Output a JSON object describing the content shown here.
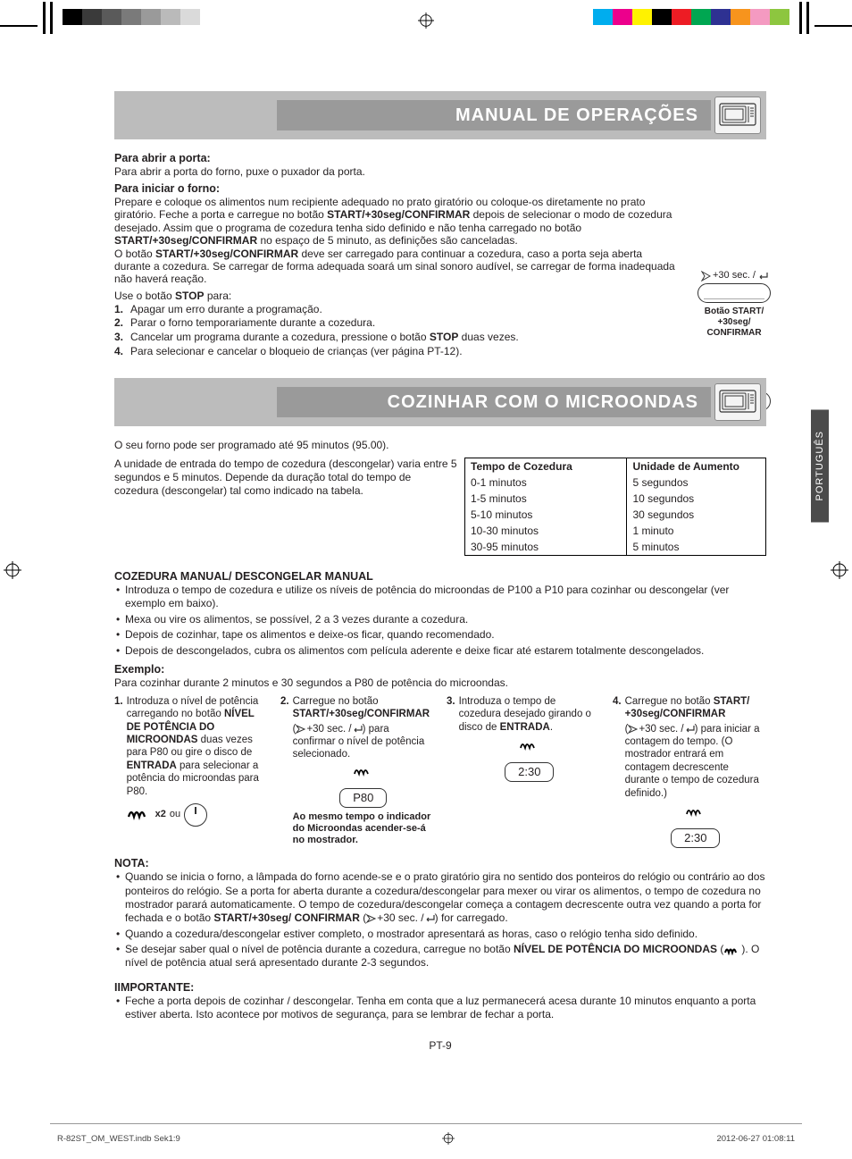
{
  "swatches_left": [
    "#000000",
    "#3a3a3a",
    "#5a5a5a",
    "#7a7a7a",
    "#9a9a9a",
    "#bababa",
    "#dadada",
    "#ffffff"
  ],
  "swatches_right": [
    "#00adee",
    "#ec008c",
    "#fff200",
    "#000000",
    "#ed1c24",
    "#00a651",
    "#2e3192",
    "#f7941d",
    "#f49ac1",
    "#8dc63f"
  ],
  "banner1": "MANUAL DE OPERAÇÕES",
  "open_door_h": "Para abrir a porta:",
  "open_door_p": "Para abrir a porta do forno, puxe o puxador da porta.",
  "start_oven_h": "Para iniciar o forno:",
  "start_oven_p1": "Prepare e coloque os alimentos num recipiente adequado no prato giratório ou coloque-os diretamente no prato giratório. Feche a porta e carregue no botão ",
  "start_oven_b1": "START/+30seg/CONFIRMAR",
  "start_oven_p1b": " depois de selecionar o modo de cozedura desejado. Assim que o programa de cozedura tenha sido definido e não tenha carregado no botão ",
  "start_oven_b2": "START/+30seg/CONFIRMAR",
  "start_oven_p1c": " no espaço de 5 minuto, as definições são canceladas.",
  "start_oven_p2a": "O botão ",
  "start_oven_b3": "START/+30seg/CONFIRMAR",
  "start_oven_p2b": " deve ser carregado para continuar a cozedura, caso a porta seja aberta durante a cozedura. Se carregar de forma adequada soará um sinal sonoro audível, se carregar de forma inadequada não haverá reação.",
  "use_stop_pre": "Use o botão ",
  "use_stop_b": "STOP",
  "use_stop_post": " para:",
  "stop_items": [
    "Apagar um erro durante a programação.",
    "Parar o forno temporariamente durante a cozedura.",
    "Cancelar um programa durante a cozedura, pressione o botão STOP duas vezes.",
    "Para selecionar e cancelar o bloqueio de crianças (ver página PT-12)."
  ],
  "stop_item3_pre": "Cancelar um programa durante a cozedura, pressione o botão ",
  "stop_item3_b": "STOP",
  "stop_item3_post": " duas vezes.",
  "rail_start_sym": "+30 sec. /",
  "rail_start_label": "Botão START/ +30seg/ CONFIRMAR",
  "rail_stop_word": "STOP",
  "lang_tab": "PORTUGUÊS",
  "banner2": "COZINHAR COM O MICROONDAS",
  "cook_p1": "O seu forno pode ser programado até 95 minutos (95.00).",
  "cook_p2": "A unidade de entrada do tempo de cozedura (descongelar) varia entre 5 segundos e 5 minutos. Depende da duração total do tempo de cozedura (descongelar) tal como indicado na tabela.",
  "table": {
    "h1": "Tempo de Cozedura",
    "h2": "Unidade de Aumento",
    "rows": [
      [
        "0-1 minutos",
        "5 segundos"
      ],
      [
        "1-5 minutos",
        "10 segundos"
      ],
      [
        "5-10 minutos",
        "30 segundos"
      ],
      [
        "10-30 minutos",
        "1 minuto"
      ],
      [
        "30-95 minutos",
        "5 minutos"
      ]
    ]
  },
  "manual_h": "COZEDURA MANUAL/ DESCONGELAR MANUAL",
  "manual_items": [
    "Introduza o tempo de cozedura e utilize os níveis de potência do microondas de P100 a P10 para cozinhar ou descongelar (ver exemplo em baixo).",
    "Mexa ou vire os alimentos, se possível, 2 a 3 vezes durante a cozedura.",
    "Depois de cozinhar, tape os alimentos e deixe-os ficar, quando recomendado.",
    "Depois de descongelados, cubra os alimentos com película aderente e deixe ficar até estarem totalmente descongelados."
  ],
  "example_h": "Exemplo:",
  "example_p": "Para cozinhar durante 2 minutos e 30 segundos a P80 de potência do microondas.",
  "steps": {
    "s1_pre": "Introduza o nível de potência carregando no botão ",
    "s1_b1": "NÍVEL DE POTÊNCIA DO MICROONDAS",
    "s1_mid": " duas vezes para P80 ou gire o disco de ",
    "s1_b2": "ENTRADA",
    "s1_post": " para selecionar a potência do microondas para P80.",
    "s1_x2": "x2",
    "s1_ou": "ou",
    "s2_pre": "Carregue no botão ",
    "s2_b": "START/+30seg/CONFIRMAR",
    "s2_sym_tail": " para confirmar o nível de potência selecionado.",
    "s2_display": "P80",
    "s2_note": "Ao mesmo tempo o indicador do Microondas acender-se-á no mostrador.",
    "s3_pre": "Introduza o tempo de cozedura desejado girando o disco de ",
    "s3_b": "ENTRADA",
    "s3_display": "2:30",
    "s4_pre": "Carregue no botão ",
    "s4_b": "START/ +30seg/CONFIRMAR",
    "s4_sym_tail": " para iniciar a contagem do tempo. (O mostrador entrará em contagem decrescente durante o tempo de cozedura definido.)",
    "s4_display": "2:30"
  },
  "nota_h": "NOTA:",
  "nota1_pre": "Quando se inicia o forno, a lâmpada do forno acende-se e o prato giratório gira no sentido dos ponteiros do relógio ou contrário ao dos ponteiros do relógio. Se a porta for aberta durante a cozedura/descongelar para mexer ou virar os alimentos, o tempo de cozedura no mostrador parará automaticamente. O tempo de cozedura/descongelar começa a contagem decrescente outra vez quando a porta for fechada e o botão ",
  "nota1_b": "START/+30seg/ CONFIRMAR",
  "nota1_post": " for carregado.",
  "nota2": "Quando a cozedura/descongelar estiver completo, o mostrador apresentará as horas, caso o relógio tenha sido definido.",
  "nota3_pre": "Se desejar saber qual o nível de potência durante a cozedura, carregue no botão ",
  "nota3_b": "NÍVEL DE POTÊNCIA DO MICROONDAS",
  "nota3_post": ". O nível de potência atual será apresentado durante 2-3 segundos.",
  "important_h": "IIMPORTANTE:",
  "important_p": "Feche a porta depois de cozinhar / descongelar. Tenha em conta que a luz permanecerá acesa durante 10 minutos enquanto a porta estiver aberta. Isto acontece por motivos de segurança, para se lembrar de fechar a porta.",
  "page_num": "PT-9",
  "footer_left": "R-82ST_OM_WEST.indb   Sek1:9",
  "footer_right": "2012-06-27   01:08:11"
}
